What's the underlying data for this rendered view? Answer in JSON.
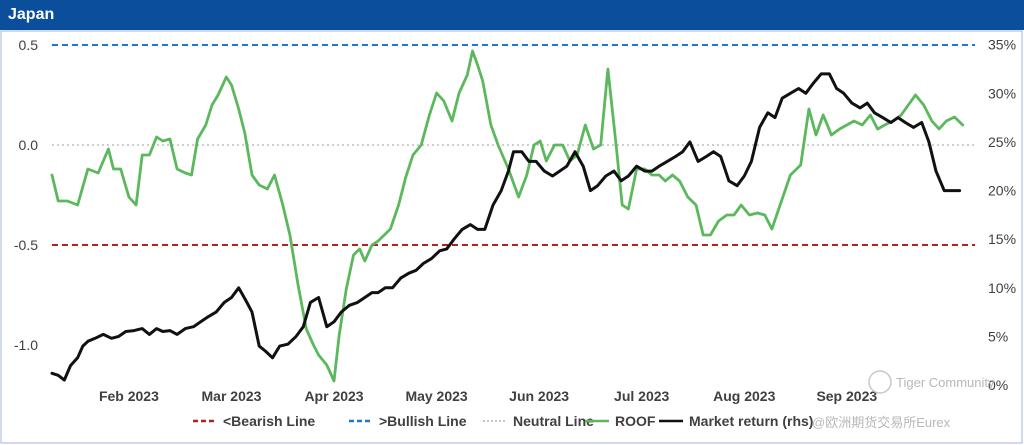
{
  "header": {
    "title": "Japan"
  },
  "colors": {
    "header_bg": "#0b4f9c",
    "bearish": "#b22222",
    "bullish": "#1f77d4",
    "neutral": "#b0b0b0",
    "roof": "#5cb85c",
    "market": "#111111"
  },
  "watermark": {
    "line1": "Tiger Community",
    "line2": "@欧洲期货交易所Eurex"
  },
  "chart_data": {
    "type": "line",
    "title": "Japan",
    "x_domain": [
      0,
      9
    ],
    "x_ticks": [
      {
        "label": "Feb 2023",
        "pos": 0.75
      },
      {
        "label": "Mar 2023",
        "pos": 1.75
      },
      {
        "label": "Apr 2023",
        "pos": 2.75
      },
      {
        "label": "May 2023",
        "pos": 3.75
      },
      {
        "label": "Jun 2023",
        "pos": 4.75
      },
      {
        "label": "Jul 2023",
        "pos": 5.75
      },
      {
        "label": "Aug 2023",
        "pos": 6.75
      },
      {
        "label": "Sep 2023",
        "pos": 7.75
      }
    ],
    "y_left": {
      "ylim": [
        -1.2,
        0.55
      ],
      "ticks": [
        0.5,
        0.0,
        -0.5,
        -1.0
      ],
      "tick_labels": [
        "0.5",
        "0.0",
        "-0.5",
        "-1.0"
      ]
    },
    "y_right": {
      "ylim": [
        0,
        0.36
      ],
      "ticks": [
        0,
        0.05,
        0.1,
        0.15,
        0.2,
        0.25,
        0.3,
        0.35
      ],
      "tick_labels": [
        "0%",
        "5%",
        "10%",
        "15%",
        "20%",
        "25%",
        "30%",
        "35%"
      ]
    },
    "reference_lines": [
      {
        "name": "<Bearish Line",
        "value": -0.5,
        "axis": "left"
      },
      {
        "name": ">Bullish Line",
        "value": 0.5,
        "axis": "left"
      },
      {
        "name": "Neutral Line",
        "value": 0.0,
        "axis": "left"
      }
    ],
    "series": [
      {
        "name": "ROOF",
        "axis": "left",
        "x": [
          0.0,
          0.06,
          0.15,
          0.25,
          0.35,
          0.45,
          0.55,
          0.6,
          0.67,
          0.75,
          0.82,
          0.88,
          0.95,
          1.02,
          1.08,
          1.15,
          1.22,
          1.3,
          1.36,
          1.42,
          1.5,
          1.56,
          1.62,
          1.7,
          1.75,
          1.82,
          1.88,
          1.95,
          2.02,
          2.1,
          2.17,
          2.25,
          2.32,
          2.4,
          2.48,
          2.55,
          2.6,
          2.68,
          2.75,
          2.8,
          2.87,
          2.94,
          3.0,
          3.05,
          3.12,
          3.18,
          3.24,
          3.3,
          3.38,
          3.45,
          3.52,
          3.6,
          3.68,
          3.75,
          3.82,
          3.9,
          3.97,
          4.05,
          4.1,
          4.15,
          4.2,
          4.28,
          4.35,
          4.45,
          4.55,
          4.63,
          4.7,
          4.76,
          4.82,
          4.9,
          4.98,
          5.05,
          5.12,
          5.2,
          5.28,
          5.35,
          5.42,
          5.5,
          5.56,
          5.62,
          5.7,
          5.78,
          5.85,
          5.92,
          5.98,
          6.05,
          6.12,
          6.2,
          6.28,
          6.35,
          6.42,
          6.5,
          6.58,
          6.65,
          6.72,
          6.8,
          6.88,
          6.95,
          7.02,
          7.1,
          7.2,
          7.3,
          7.38,
          7.45,
          7.52,
          7.6,
          7.68,
          7.75,
          7.82,
          7.9,
          7.98,
          8.05,
          8.12,
          8.2,
          8.28,
          8.35,
          8.42,
          8.5,
          8.58,
          8.65,
          8.72,
          8.8,
          8.88
        ],
        "values": [
          -0.15,
          -0.28,
          -0.28,
          -0.3,
          -0.12,
          -0.14,
          -0.02,
          -0.12,
          -0.12,
          -0.26,
          -0.3,
          -0.05,
          -0.05,
          0.04,
          0.02,
          0.03,
          -0.12,
          -0.14,
          -0.15,
          0.03,
          0.1,
          0.2,
          0.25,
          0.34,
          0.3,
          0.18,
          0.06,
          -0.15,
          -0.2,
          -0.22,
          -0.15,
          -0.3,
          -0.45,
          -0.7,
          -0.92,
          -1.0,
          -1.05,
          -1.1,
          -1.18,
          -0.95,
          -0.72,
          -0.55,
          -0.52,
          -0.58,
          -0.5,
          -0.48,
          -0.45,
          -0.42,
          -0.3,
          -0.16,
          -0.05,
          0.0,
          0.15,
          0.26,
          0.22,
          0.12,
          0.26,
          0.35,
          0.47,
          0.4,
          0.32,
          0.1,
          0.0,
          -0.12,
          -0.26,
          -0.15,
          0.0,
          0.02,
          -0.08,
          0.0,
          0.0,
          -0.08,
          -0.05,
          0.1,
          -0.02,
          0.0,
          0.38,
          0.0,
          -0.3,
          -0.32,
          -0.12,
          -0.12,
          -0.15,
          -0.15,
          -0.18,
          -0.15,
          -0.18,
          -0.26,
          -0.3,
          -0.45,
          -0.45,
          -0.38,
          -0.35,
          -0.35,
          -0.3,
          -0.35,
          -0.34,
          -0.35,
          -0.42,
          -0.3,
          -0.15,
          -0.1,
          0.18,
          0.05,
          0.15,
          0.05,
          0.08,
          0.1,
          0.12,
          0.1,
          0.15,
          0.08,
          0.1,
          0.12,
          0.15,
          0.2,
          0.25,
          0.2,
          0.12,
          0.08,
          0.12,
          0.14,
          0.1
        ]
      },
      {
        "name": "Market return (rhs)",
        "axis": "right",
        "x": [
          0.0,
          0.06,
          0.12,
          0.18,
          0.25,
          0.3,
          0.35,
          0.42,
          0.5,
          0.58,
          0.65,
          0.72,
          0.8,
          0.88,
          0.95,
          1.02,
          1.08,
          1.15,
          1.22,
          1.3,
          1.38,
          1.45,
          1.52,
          1.6,
          1.68,
          1.75,
          1.82,
          1.9,
          1.95,
          2.02,
          2.08,
          2.15,
          2.22,
          2.3,
          2.38,
          2.45,
          2.52,
          2.6,
          2.68,
          2.75,
          2.82,
          2.9,
          2.98,
          3.05,
          3.12,
          3.18,
          3.25,
          3.32,
          3.4,
          3.48,
          3.55,
          3.62,
          3.7,
          3.78,
          3.85,
          3.92,
          4.0,
          4.08,
          4.15,
          4.22,
          4.3,
          4.38,
          4.45,
          4.5,
          4.58,
          4.65,
          4.72,
          4.8,
          4.88,
          4.95,
          5.02,
          5.1,
          5.18,
          5.25,
          5.32,
          5.4,
          5.48,
          5.55,
          5.62,
          5.7,
          5.78,
          5.85,
          5.92,
          6.0,
          6.08,
          6.15,
          6.22,
          6.3,
          6.38,
          6.45,
          6.52,
          6.6,
          6.68,
          6.75,
          6.82,
          6.9,
          6.98,
          7.05,
          7.12,
          7.2,
          7.28,
          7.35,
          7.42,
          7.5,
          7.58,
          7.65,
          7.72,
          7.8,
          7.88,
          7.95,
          8.02,
          8.1,
          8.18,
          8.25,
          8.32,
          8.4,
          8.48,
          8.55,
          8.62,
          8.7,
          8.78,
          8.85
        ],
        "values": [
          0.012,
          0.01,
          0.005,
          0.02,
          0.028,
          0.04,
          0.045,
          0.048,
          0.052,
          0.048,
          0.05,
          0.055,
          0.056,
          0.058,
          0.052,
          0.058,
          0.055,
          0.056,
          0.052,
          0.058,
          0.06,
          0.065,
          0.07,
          0.075,
          0.085,
          0.09,
          0.1,
          0.085,
          0.075,
          0.04,
          0.035,
          0.028,
          0.04,
          0.042,
          0.05,
          0.06,
          0.085,
          0.09,
          0.06,
          0.065,
          0.075,
          0.082,
          0.085,
          0.09,
          0.095,
          0.095,
          0.1,
          0.1,
          0.11,
          0.115,
          0.118,
          0.125,
          0.13,
          0.138,
          0.14,
          0.15,
          0.16,
          0.165,
          0.16,
          0.16,
          0.185,
          0.2,
          0.22,
          0.24,
          0.24,
          0.23,
          0.23,
          0.22,
          0.215,
          0.22,
          0.225,
          0.24,
          0.225,
          0.2,
          0.205,
          0.215,
          0.22,
          0.21,
          0.215,
          0.225,
          0.22,
          0.22,
          0.225,
          0.23,
          0.235,
          0.24,
          0.25,
          0.23,
          0.235,
          0.24,
          0.235,
          0.21,
          0.205,
          0.215,
          0.23,
          0.265,
          0.28,
          0.275,
          0.295,
          0.3,
          0.305,
          0.3,
          0.31,
          0.32,
          0.32,
          0.305,
          0.3,
          0.29,
          0.285,
          0.29,
          0.28,
          0.275,
          0.27,
          0.275,
          0.27,
          0.265,
          0.27,
          0.25,
          0.22,
          0.2,
          0.2,
          0.2
        ]
      }
    ],
    "legend": {
      "position": "bottom",
      "entries": [
        {
          "label": "<Bearish Line",
          "style": "dashed",
          "color_key": "bearish"
        },
        {
          "label": ">Bullish Line",
          "style": "dashed",
          "color_key": "bullish"
        },
        {
          "label": "Neutral Line",
          "style": "dotted",
          "color_key": "neutral"
        },
        {
          "label": "ROOF",
          "style": "solid",
          "color_key": "roof"
        },
        {
          "label": "Market return (rhs)",
          "style": "solid",
          "color_key": "market"
        }
      ]
    }
  }
}
